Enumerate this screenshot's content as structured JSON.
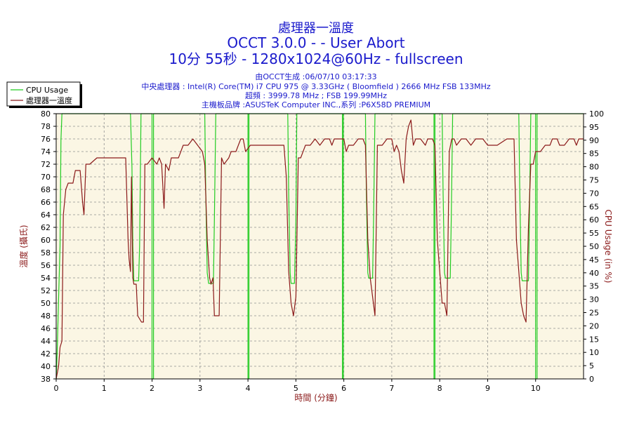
{
  "header": {
    "title": "處理器一溫度",
    "subtitle1": "OCCT 3.0.0 -  - User Abort",
    "subtitle2": "10分 55秒 - 1280x1024@60Hz - fullscreen",
    "info_lines": [
      "由OCCT生成 :06/07/10 03:17:33",
      "中央處理器 : Intel(R) Core(TM) i7 CPU 975 @ 3.33GHz ( Bloomfield ) 2666 MHz FSB 133MHz",
      "超頻 : 3999.78 MHz ; FSB 199.99MHz",
      "主機板品牌 :ASUSTeK Computer INC.,系列 :P6X58D PREMIUM"
    ]
  },
  "colors": {
    "plot_bg": "#fbf6e4",
    "grid": "#909090",
    "temp_line": "#8b1a1a",
    "cpu_line": "#22cc22",
    "title": "#1a1acc",
    "axis_label": "#8b1a1a"
  },
  "chart_data": {
    "type": "line",
    "xlabel": "時間 (分鐘)",
    "ylabel_left": "溫度 (攝氏)",
    "ylabel_right": "CPU Usage (in %)",
    "xlim": [
      0,
      11
    ],
    "ylim_left": [
      38,
      80
    ],
    "ylim_right": [
      0,
      100
    ],
    "x_ticks": [
      "0",
      "1",
      "2",
      "3",
      "4",
      "5",
      "6",
      "7",
      "8",
      "9",
      "10"
    ],
    "y_left_ticks": [
      "38",
      "40",
      "42",
      "44",
      "46",
      "48",
      "50",
      "52",
      "54",
      "56",
      "58",
      "60",
      "62",
      "64",
      "66",
      "68",
      "70",
      "72",
      "74",
      "76",
      "78",
      "80"
    ],
    "y_right_ticks": [
      "0",
      "5",
      "10",
      "15",
      "20",
      "25",
      "30",
      "35",
      "40",
      "45",
      "50",
      "55",
      "60",
      "65",
      "70",
      "75",
      "80",
      "85",
      "90",
      "95",
      "100"
    ],
    "grid": true,
    "legend_position": "top-left",
    "series": [
      {
        "name": "CPU Usage",
        "axis": "right",
        "color": "#22cc22",
        "points": [
          [
            0,
            0
          ],
          [
            0.02,
            10
          ],
          [
            0.05,
            30
          ],
          [
            0.08,
            50
          ],
          [
            0.1,
            90
          ],
          [
            0.12,
            100
          ],
          [
            1.55,
            100
          ],
          [
            1.58,
            80
          ],
          [
            1.6,
            50
          ],
          [
            1.62,
            37
          ],
          [
            1.72,
            37
          ],
          [
            1.74,
            50
          ],
          [
            1.77,
            100
          ],
          [
            2.0,
            100
          ],
          [
            2.0,
            0
          ],
          [
            2.03,
            0
          ],
          [
            2.03,
            100
          ],
          [
            3.1,
            100
          ],
          [
            3.12,
            70
          ],
          [
            3.15,
            40
          ],
          [
            3.18,
            36
          ],
          [
            3.28,
            36
          ],
          [
            3.3,
            60
          ],
          [
            3.33,
            100
          ],
          [
            4.0,
            100
          ],
          [
            4.0,
            0
          ],
          [
            4.02,
            0
          ],
          [
            4.02,
            100
          ],
          [
            4.83,
            100
          ],
          [
            4.85,
            70
          ],
          [
            4.88,
            40
          ],
          [
            4.9,
            36
          ],
          [
            4.97,
            36
          ],
          [
            5.0,
            60
          ],
          [
            5.02,
            100
          ],
          [
            5.97,
            100
          ],
          [
            5.97,
            0
          ],
          [
            5.99,
            0
          ],
          [
            5.99,
            100
          ],
          [
            6.45,
            100
          ],
          [
            6.47,
            70
          ],
          [
            6.5,
            40
          ],
          [
            6.52,
            38
          ],
          [
            6.6,
            38
          ],
          [
            6.62,
            60
          ],
          [
            6.65,
            100
          ],
          [
            7.88,
            100
          ],
          [
            7.88,
            0
          ],
          [
            7.9,
            0
          ],
          [
            7.9,
            100
          ],
          [
            8.05,
            100
          ],
          [
            8.07,
            70
          ],
          [
            8.1,
            40
          ],
          [
            8.12,
            38
          ],
          [
            8.22,
            38
          ],
          [
            8.24,
            60
          ],
          [
            8.27,
            100
          ],
          [
            9.65,
            100
          ],
          [
            9.67,
            70
          ],
          [
            9.7,
            40
          ],
          [
            9.72,
            37
          ],
          [
            9.85,
            37
          ],
          [
            9.87,
            60
          ],
          [
            9.9,
            100
          ],
          [
            10.0,
            100
          ],
          [
            10.0,
            0
          ],
          [
            10.03,
            0
          ],
          [
            10.03,
            100
          ],
          [
            11,
            100
          ]
        ]
      },
      {
        "name": "處理器一溫度",
        "axis": "left",
        "color": "#8b1a1a",
        "points": [
          [
            0,
            38
          ],
          [
            0.05,
            40
          ],
          [
            0.08,
            43
          ],
          [
            0.12,
            44
          ],
          [
            0.15,
            64
          ],
          [
            0.2,
            68
          ],
          [
            0.25,
            69
          ],
          [
            0.35,
            69
          ],
          [
            0.4,
            71
          ],
          [
            0.5,
            71
          ],
          [
            0.55,
            66
          ],
          [
            0.58,
            64
          ],
          [
            0.62,
            72
          ],
          [
            0.7,
            72
          ],
          [
            0.85,
            73
          ],
          [
            1.45,
            73
          ],
          [
            1.5,
            60
          ],
          [
            1.52,
            57
          ],
          [
            1.55,
            55
          ],
          [
            1.57,
            70
          ],
          [
            1.6,
            54
          ],
          [
            1.62,
            53
          ],
          [
            1.67,
            53
          ],
          [
            1.7,
            48
          ],
          [
            1.78,
            47
          ],
          [
            1.82,
            47
          ],
          [
            1.85,
            72
          ],
          [
            1.9,
            72
          ],
          [
            2.0,
            73
          ],
          [
            2.1,
            72
          ],
          [
            2.15,
            73
          ],
          [
            2.2,
            72
          ],
          [
            2.25,
            65
          ],
          [
            2.28,
            72
          ],
          [
            2.35,
            71
          ],
          [
            2.4,
            73
          ],
          [
            2.55,
            73
          ],
          [
            2.6,
            74
          ],
          [
            2.65,
            75
          ],
          [
            2.75,
            75
          ],
          [
            2.85,
            76
          ],
          [
            2.95,
            75
          ],
          [
            3.05,
            74
          ],
          [
            3.1,
            72
          ],
          [
            3.15,
            60
          ],
          [
            3.2,
            54
          ],
          [
            3.23,
            53
          ],
          [
            3.27,
            54
          ],
          [
            3.3,
            48
          ],
          [
            3.4,
            48
          ],
          [
            3.45,
            73
          ],
          [
            3.5,
            72
          ],
          [
            3.6,
            73
          ],
          [
            3.65,
            74
          ],
          [
            3.75,
            74
          ],
          [
            3.8,
            75
          ],
          [
            3.85,
            76
          ],
          [
            3.9,
            76
          ],
          [
            3.95,
            74
          ],
          [
            4.05,
            75
          ],
          [
            4.1,
            75
          ],
          [
            4.3,
            75
          ],
          [
            4.75,
            75
          ],
          [
            4.8,
            70
          ],
          [
            4.85,
            55
          ],
          [
            4.9,
            50
          ],
          [
            4.95,
            48
          ],
          [
            5.0,
            51
          ],
          [
            5.05,
            73
          ],
          [
            5.1,
            73
          ],
          [
            5.15,
            74
          ],
          [
            5.2,
            75
          ],
          [
            5.3,
            75
          ],
          [
            5.4,
            76
          ],
          [
            5.5,
            75
          ],
          [
            5.6,
            76
          ],
          [
            5.7,
            76
          ],
          [
            5.75,
            75
          ],
          [
            5.8,
            76
          ],
          [
            5.9,
            76
          ],
          [
            6.0,
            76
          ],
          [
            6.05,
            74
          ],
          [
            6.1,
            75
          ],
          [
            6.2,
            75
          ],
          [
            6.3,
            76
          ],
          [
            6.4,
            76
          ],
          [
            6.45,
            75
          ],
          [
            6.5,
            60
          ],
          [
            6.55,
            54
          ],
          [
            6.6,
            51
          ],
          [
            6.65,
            48
          ],
          [
            6.7,
            75
          ],
          [
            6.8,
            75
          ],
          [
            6.9,
            76
          ],
          [
            7.0,
            76
          ],
          [
            7.05,
            74
          ],
          [
            7.1,
            75
          ],
          [
            7.15,
            74
          ],
          [
            7.2,
            71
          ],
          [
            7.25,
            69
          ],
          [
            7.3,
            76
          ],
          [
            7.35,
            78
          ],
          [
            7.4,
            79
          ],
          [
            7.45,
            75
          ],
          [
            7.5,
            76
          ],
          [
            7.6,
            76
          ],
          [
            7.7,
            75
          ],
          [
            7.75,
            76
          ],
          [
            7.85,
            76
          ],
          [
            7.9,
            75
          ],
          [
            7.95,
            60
          ],
          [
            8.0,
            55
          ],
          [
            8.05,
            50
          ],
          [
            8.1,
            50
          ],
          [
            8.15,
            48
          ],
          [
            8.2,
            74
          ],
          [
            8.25,
            76
          ],
          [
            8.3,
            76
          ],
          [
            8.35,
            75
          ],
          [
            8.45,
            76
          ],
          [
            8.55,
            76
          ],
          [
            8.65,
            75
          ],
          [
            8.75,
            76
          ],
          [
            8.9,
            76
          ],
          [
            9.0,
            75
          ],
          [
            9.2,
            75
          ],
          [
            9.4,
            76
          ],
          [
            9.55,
            76
          ],
          [
            9.6,
            60
          ],
          [
            9.65,
            55
          ],
          [
            9.7,
            50
          ],
          [
            9.75,
            48
          ],
          [
            9.8,
            47
          ],
          [
            9.85,
            62
          ],
          [
            9.9,
            72
          ],
          [
            9.95,
            72
          ],
          [
            10.0,
            74
          ],
          [
            10.1,
            74
          ],
          [
            10.2,
            75
          ],
          [
            10.3,
            75
          ],
          [
            10.35,
            76
          ],
          [
            10.45,
            76
          ],
          [
            10.5,
            75
          ],
          [
            10.6,
            75
          ],
          [
            10.7,
            76
          ],
          [
            10.8,
            76
          ],
          [
            10.85,
            75
          ],
          [
            10.9,
            76
          ],
          [
            11,
            76
          ]
        ]
      }
    ]
  }
}
